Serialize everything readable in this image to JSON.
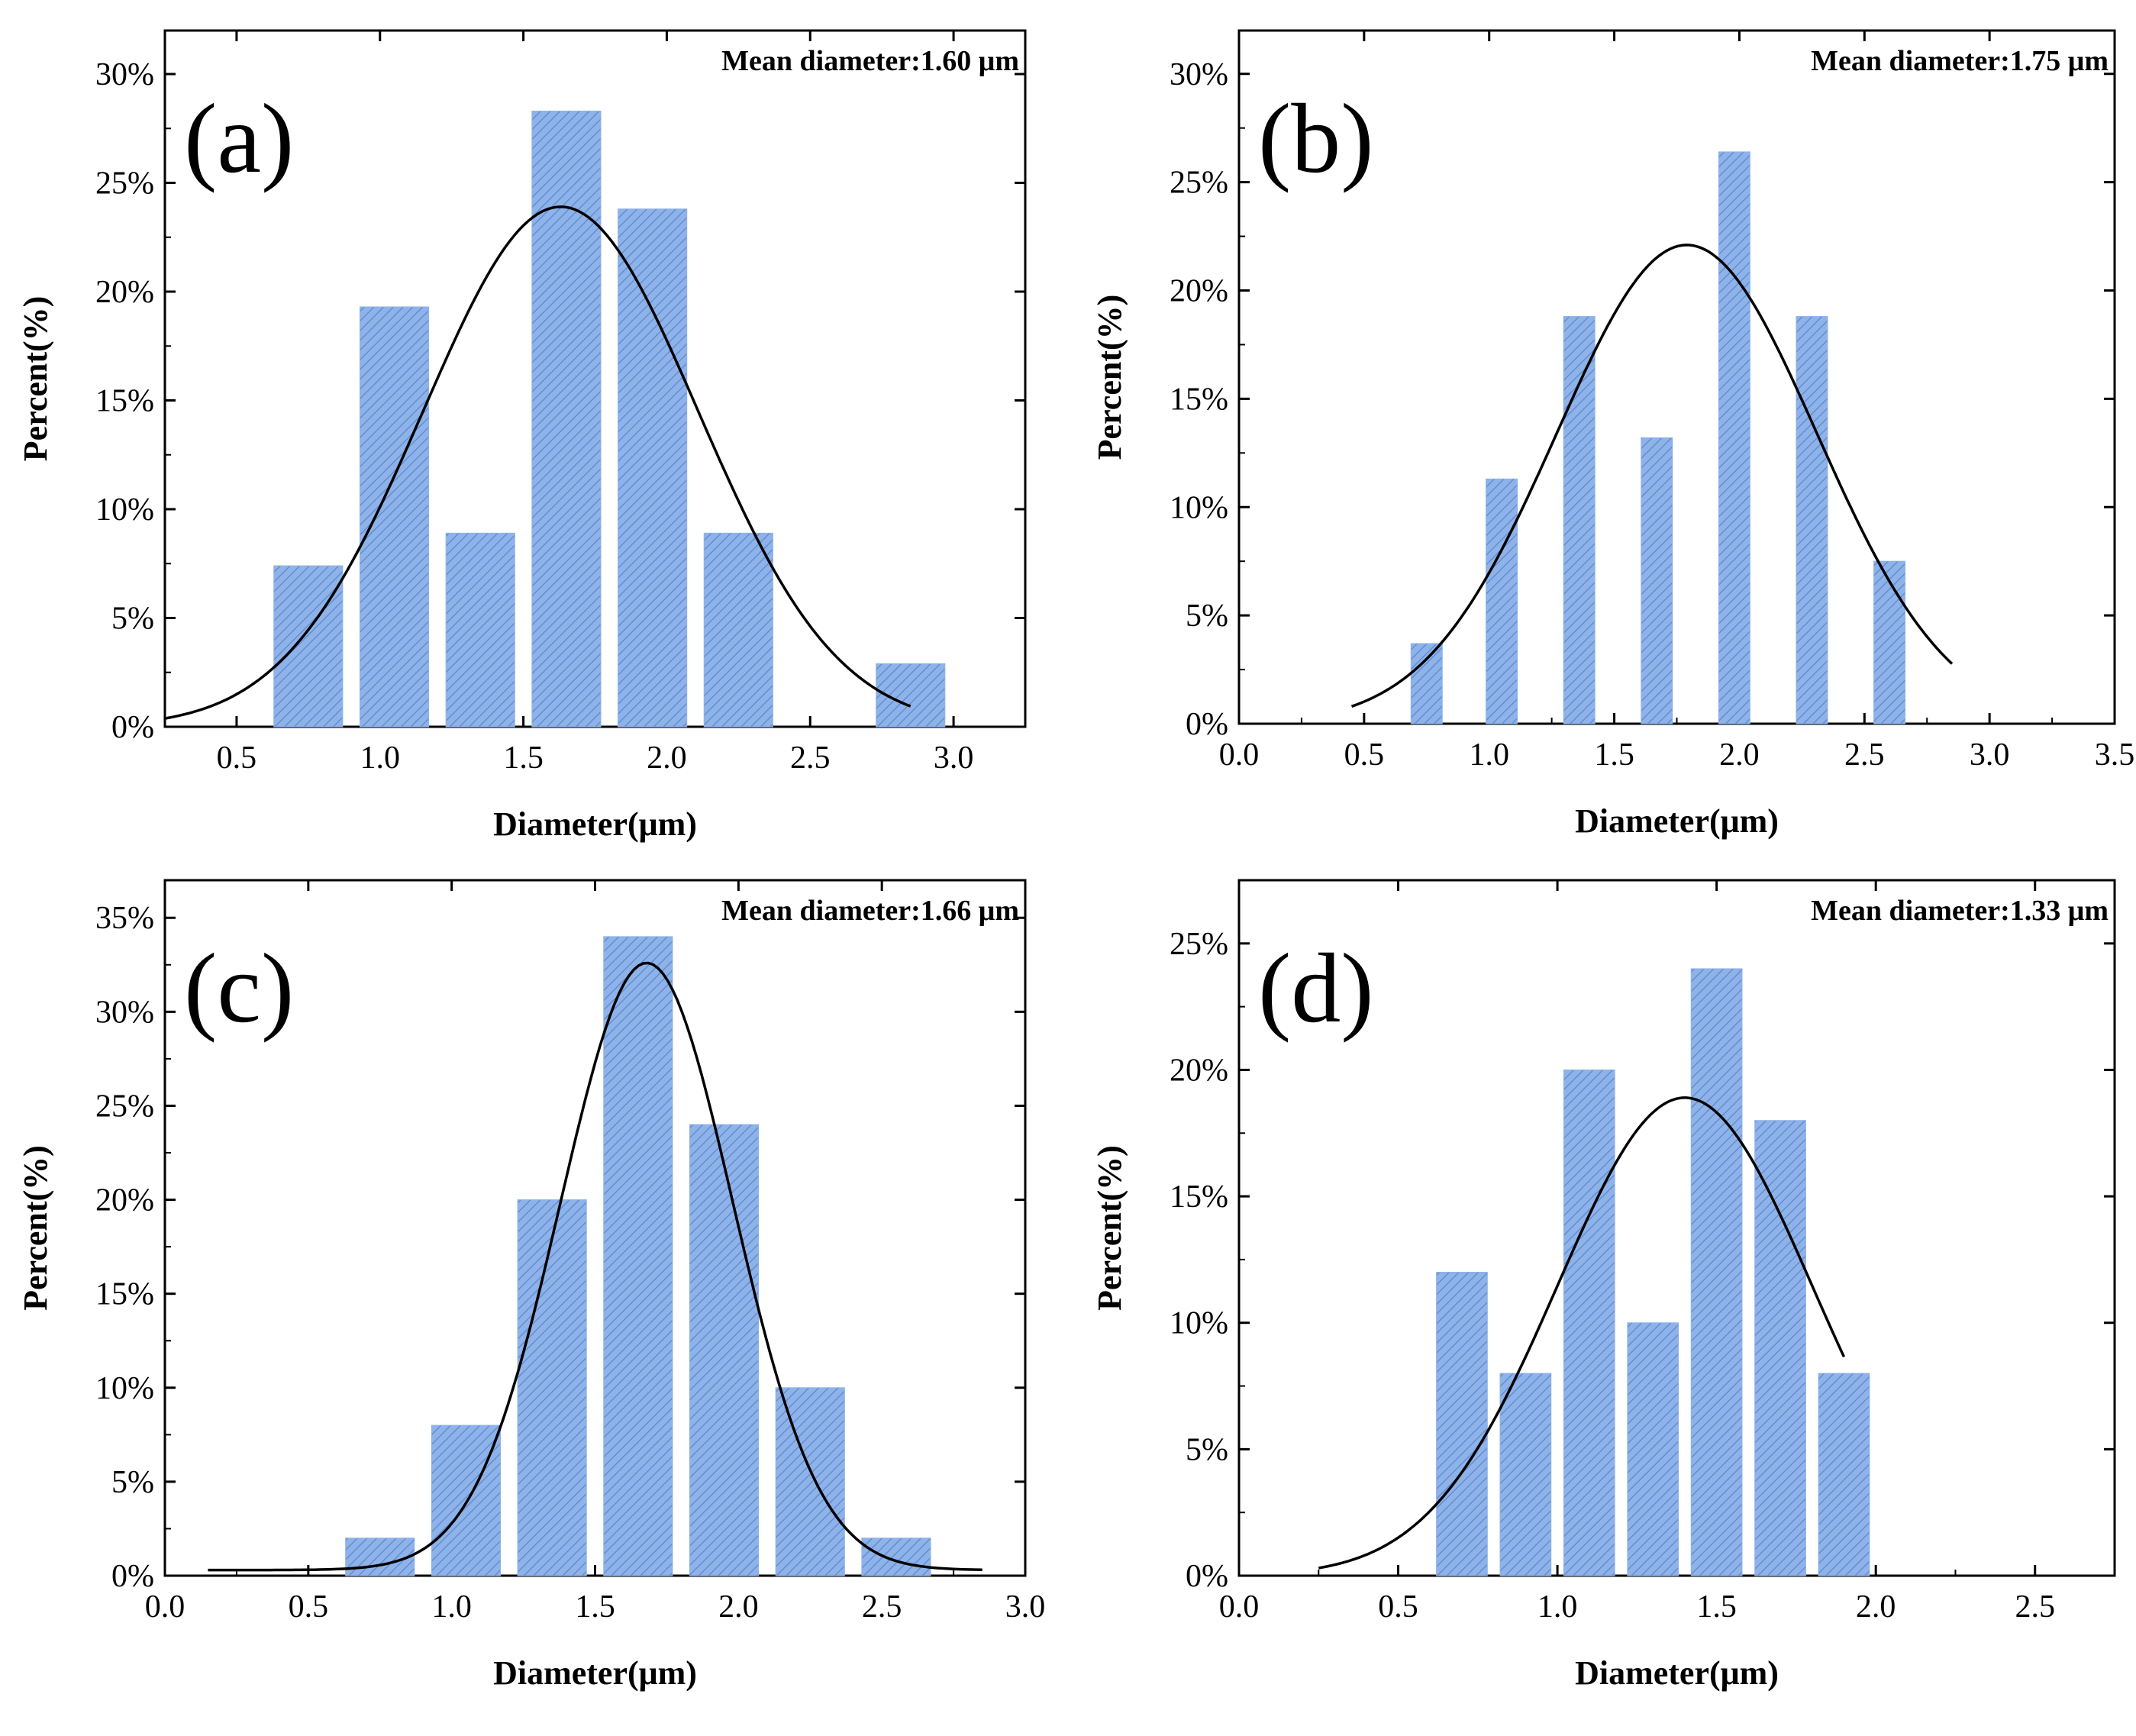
{
  "colors": {
    "bar_fill": "#8fb3e8",
    "bar_hatch": "#5f8fd6",
    "curve": "#000000",
    "axis": "#000000",
    "background": "#ffffff"
  },
  "chart_data": [
    {
      "type": "bar",
      "panel_label": "(a)",
      "annotation": "Mean diameter:1.60 μm",
      "xlabel": "Diameter(μm)",
      "ylabel": "Percent(%)",
      "xlim": [
        0.25,
        3.25
      ],
      "ylim": [
        0,
        32
      ],
      "x_ticks": [
        0.5,
        1.0,
        1.5,
        2.0,
        2.5,
        3.0
      ],
      "x_tick_labels": [
        "0.5",
        "1.0",
        "1.5",
        "2.0",
        "2.5",
        "3.0"
      ],
      "y_ticks": [
        0,
        5,
        10,
        15,
        20,
        25,
        30
      ],
      "y_tick_labels": [
        "0%",
        "5%",
        "10%",
        "15%",
        "20%",
        "25%",
        "30%"
      ],
      "bar_width": 0.24,
      "bars": [
        {
          "x": 0.75,
          "y": 7.4
        },
        {
          "x": 1.05,
          "y": 19.3
        },
        {
          "x": 1.35,
          "y": 8.9
        },
        {
          "x": 1.65,
          "y": 28.3
        },
        {
          "x": 1.95,
          "y": 23.8
        },
        {
          "x": 2.25,
          "y": 8.9
        },
        {
          "x": 2.85,
          "y": 2.9
        }
      ],
      "fit": {
        "peak": 23.9,
        "mu": 1.63,
        "sigma": 0.48,
        "x_start": 0.25,
        "x_end": 2.85
      }
    },
    {
      "type": "bar",
      "panel_label": "(b)",
      "annotation": "Mean diameter:1.75 μm",
      "xlabel": "Diameter(μm)",
      "ylabel": "Percent(%)",
      "xlim": [
        0.0,
        3.5
      ],
      "ylim": [
        0,
        32
      ],
      "x_ticks": [
        0.0,
        0.5,
        1.0,
        1.5,
        2.0,
        2.5,
        3.0,
        3.5
      ],
      "x_tick_labels": [
        "0.0",
        "0.5",
        "1.0",
        "1.5",
        "2.0",
        "2.5",
        "3.0",
        "3.5"
      ],
      "y_ticks": [
        0,
        5,
        10,
        15,
        20,
        25,
        30
      ],
      "y_tick_labels": [
        "0%",
        "5%",
        "10%",
        "15%",
        "20%",
        "25%",
        "30%"
      ],
      "bar_width": 0.125,
      "bars": [
        {
          "x": 0.75,
          "y": 3.7
        },
        {
          "x": 1.05,
          "y": 11.3
        },
        {
          "x": 1.36,
          "y": 18.8
        },
        {
          "x": 1.67,
          "y": 13.2
        },
        {
          "x": 1.98,
          "y": 26.4
        },
        {
          "x": 2.29,
          "y": 18.8
        },
        {
          "x": 2.6,
          "y": 7.5
        }
      ],
      "fit": {
        "peak": 22.1,
        "mu": 1.79,
        "sigma": 0.52,
        "x_start": 0.45,
        "x_end": 2.85
      }
    },
    {
      "type": "bar",
      "panel_label": "(c)",
      "annotation": "Mean diameter:1.66 μm",
      "xlabel": "Diameter(μm)",
      "ylabel": "Percent(%)",
      "xlim": [
        0.0,
        3.0
      ],
      "ylim": [
        0,
        37
      ],
      "x_ticks": [
        0.0,
        0.5,
        1.0,
        1.5,
        2.0,
        2.5,
        3.0
      ],
      "x_tick_labels": [
        "0.0",
        "0.5",
        "1.0",
        "1.5",
        "2.0",
        "2.5",
        "3.0"
      ],
      "y_ticks": [
        0,
        5,
        10,
        15,
        20,
        25,
        30,
        35
      ],
      "y_tick_labels": [
        "0%",
        "5%",
        "10%",
        "15%",
        "20%",
        "25%",
        "30%",
        "35%"
      ],
      "bar_width": 0.24,
      "bars": [
        {
          "x": 0.75,
          "y": 2
        },
        {
          "x": 1.05,
          "y": 8
        },
        {
          "x": 1.35,
          "y": 20
        },
        {
          "x": 1.65,
          "y": 34
        },
        {
          "x": 1.95,
          "y": 24
        },
        {
          "x": 2.25,
          "y": 10
        },
        {
          "x": 2.55,
          "y": 2
        }
      ],
      "fit": {
        "peak": 32.6,
        "mu": 1.68,
        "sigma": 0.3,
        "baseline": 0.3,
        "x_start": 0.15,
        "x_end": 2.85
      }
    },
    {
      "type": "bar",
      "panel_label": "(d)",
      "annotation": "Mean diameter:1.33 μm",
      "xlabel": "Diameter(μm)",
      "ylabel": "Percent(%)",
      "xlim": [
        0.0,
        2.75
      ],
      "ylim": [
        0,
        27.5
      ],
      "x_ticks": [
        0.0,
        0.5,
        1.0,
        1.5,
        2.0,
        2.5
      ],
      "x_tick_labels": [
        "0.0",
        "0.5",
        "1.0",
        "1.5",
        "2.0",
        "2.5"
      ],
      "y_ticks": [
        0,
        5,
        10,
        15,
        20,
        25
      ],
      "y_tick_labels": [
        "0%",
        "5%",
        "10%",
        "15%",
        "20%",
        "25%"
      ],
      "bar_width": 0.16,
      "bars": [
        {
          "x": 0.7,
          "y": 12
        },
        {
          "x": 0.9,
          "y": 8
        },
        {
          "x": 1.1,
          "y": 20
        },
        {
          "x": 1.3,
          "y": 10
        },
        {
          "x": 1.5,
          "y": 24
        },
        {
          "x": 1.7,
          "y": 18
        },
        {
          "x": 1.9,
          "y": 8
        }
      ],
      "fit": {
        "peak": 18.9,
        "mu": 1.4,
        "sigma": 0.4,
        "x_start": 0.25,
        "x_end": 1.9
      }
    }
  ]
}
